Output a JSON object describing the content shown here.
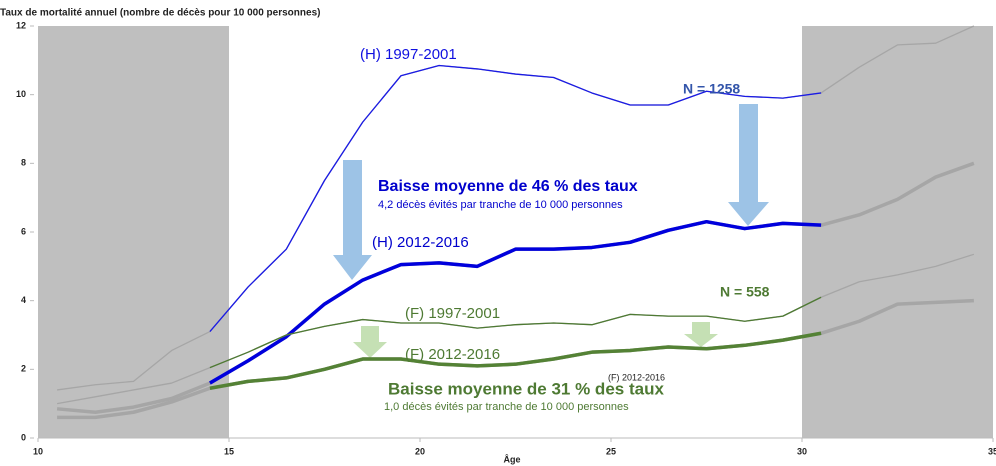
{
  "chart_data": {
    "type": "line",
    "title": "Taux de mortalité annuel (nombre de décès pour 10 000 personnes)",
    "x_label": "Âge",
    "x": [
      10.5,
      11.5,
      12.5,
      13.5,
      14.5,
      15.5,
      16.5,
      17.5,
      18.5,
      19.5,
      20.5,
      21.5,
      22.5,
      23.5,
      24.5,
      25.5,
      26.5,
      27.5,
      28.5,
      29.5,
      30.5,
      31.5,
      32.5,
      33.5,
      34.5
    ],
    "series": [
      {
        "name": "(H) 1997-2001",
        "color": "#1a1ae6",
        "width": 1.3,
        "values": [
          1.4,
          1.55,
          1.65,
          2.55,
          3.1,
          4.4,
          5.5,
          7.5,
          9.2,
          10.55,
          10.85,
          10.75,
          10.6,
          10.5,
          10.05,
          9.7,
          9.7,
          10.1,
          9.95,
          9.9,
          10.05,
          10.8,
          11.45,
          11.5,
          12.0
        ]
      },
      {
        "name": "(H) 2012-2016",
        "color": "#0000dd",
        "width": 3.5,
        "values": [
          0.85,
          0.75,
          0.9,
          1.15,
          1.6,
          2.25,
          2.95,
          3.9,
          4.6,
          5.05,
          5.1,
          5.0,
          5.5,
          5.5,
          5.55,
          5.7,
          6.05,
          6.3,
          6.1,
          6.25,
          6.2,
          6.5,
          6.95,
          7.6,
          8.0
        ]
      },
      {
        "name": "(F) 1997-2001",
        "color": "#4e7a33",
        "width": 1.3,
        "values": [
          1.0,
          1.2,
          1.4,
          1.6,
          2.05,
          2.5,
          3.0,
          3.25,
          3.45,
          3.35,
          3.35,
          3.2,
          3.3,
          3.35,
          3.3,
          3.6,
          3.55,
          3.55,
          3.4,
          3.55,
          4.1,
          4.55,
          4.75,
          5.0,
          5.35
        ]
      },
      {
        "name": "(F) 2012-2016",
        "color": "#548235",
        "width": 3.5,
        "values": [
          0.6,
          0.6,
          0.75,
          1.05,
          1.45,
          1.65,
          1.75,
          2.0,
          2.3,
          2.3,
          2.15,
          2.1,
          2.15,
          2.3,
          2.5,
          2.55,
          2.65,
          2.6,
          2.7,
          2.85,
          3.05,
          3.4,
          3.9,
          3.95,
          4.0
        ]
      }
    ],
    "outside_color": "#a6a6a6",
    "color_range": [
      14.5,
      30.5
    ],
    "shaded": [
      [
        10,
        15
      ],
      [
        30,
        35
      ]
    ],
    "shade_color": "#bfbfbf",
    "xlim": [
      10,
      35
    ],
    "xticks": [
      10,
      15,
      20,
      25,
      30,
      35
    ],
    "ylim": [
      0,
      12
    ],
    "yticks": [
      0,
      2,
      4,
      6,
      8,
      10,
      12
    ],
    "annotations": [
      "(F) 2012-2016",
      "N = 1258",
      "N = 558",
      "Baisse moyenne de 46 % des taux",
      "4,2 décès évités par tranche de 10 000 personnes",
      "Baisse moyenne de 31 % des taux",
      "1,0 décès évités par tranche de 10 000 personnes"
    ]
  }
}
